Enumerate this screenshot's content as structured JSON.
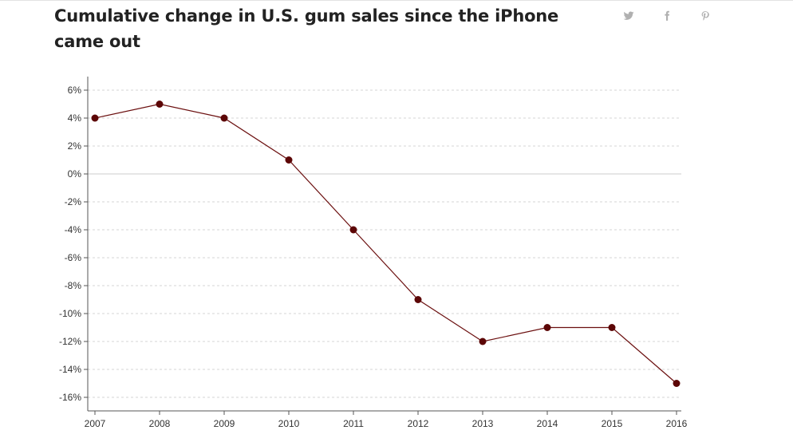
{
  "header": {
    "title": "Cumulative change in U.S. gum sales since the iPhone came out",
    "share": [
      {
        "icon": "twitter-icon"
      },
      {
        "icon": "facebook-icon"
      },
      {
        "icon": "pinterest-icon"
      }
    ]
  },
  "colors": {
    "line": "#6b0f0f",
    "marker": "#5c0606",
    "grid": "#d4d4d4",
    "zero_line": "#cccccc",
    "axis": "#555555",
    "share_icon": "#b0b0b0"
  },
  "chart_data": {
    "type": "line",
    "title": "Cumulative change in U.S. gum sales since the iPhone came out",
    "xlabel": "",
    "ylabel": "",
    "x": [
      "2007",
      "2008",
      "2009",
      "2010",
      "2011",
      "2012",
      "2013",
      "2014",
      "2015",
      "2016"
    ],
    "series": [
      {
        "values": [
          4,
          5,
          4,
          1,
          -4,
          -9,
          -12,
          -11,
          -11,
          -15
        ]
      }
    ],
    "y_ticks": [
      "6%",
      "4%",
      "2%",
      "0%",
      "-2%",
      "-4%",
      "-6%",
      "-8%",
      "-10%",
      "-12%",
      "-14%",
      "-16%"
    ],
    "y_tick_values": [
      6,
      4,
      2,
      0,
      -2,
      -4,
      -6,
      -8,
      -10,
      -12,
      -14,
      -16
    ],
    "ylim": [
      -17,
      7
    ],
    "grid": "horizontal dashed",
    "legend": "none"
  }
}
